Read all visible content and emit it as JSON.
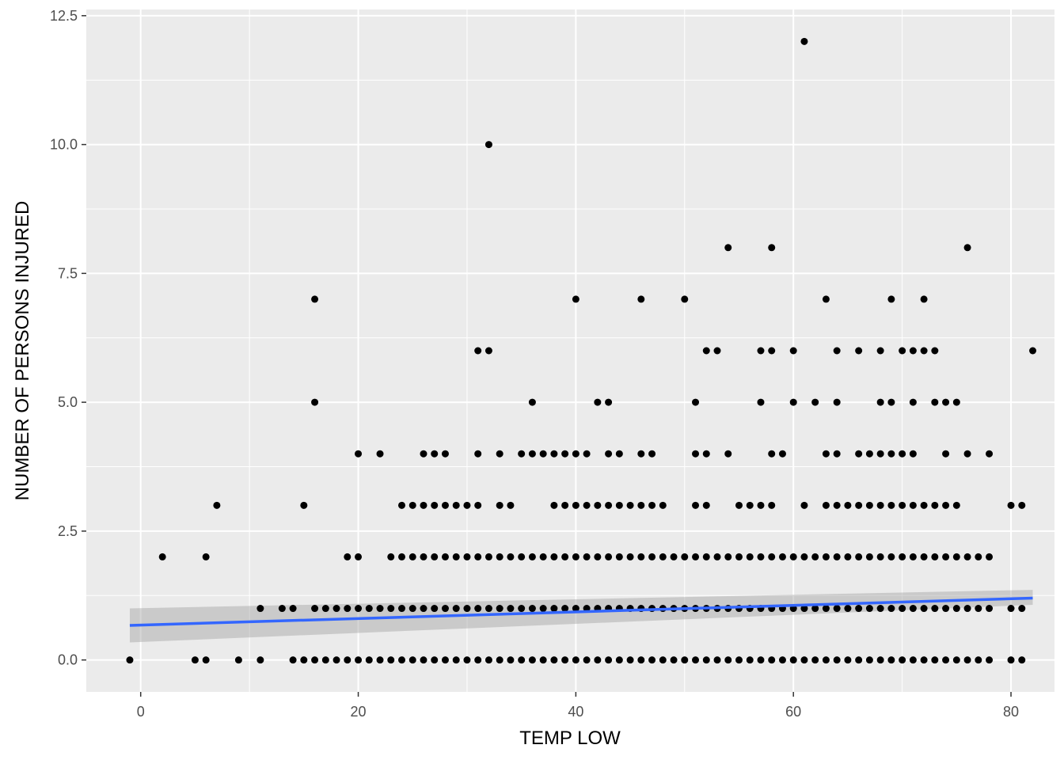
{
  "chart_data": {
    "type": "scatter",
    "title": "",
    "xlabel": "TEMP LOW",
    "ylabel": "NUMBER OF PERSONS INJURED",
    "xlim": [
      -5,
      84
    ],
    "ylim": [
      -0.62,
      12.62
    ],
    "x_ticks": [
      0,
      20,
      40,
      60,
      80
    ],
    "x_tick_labels": [
      "0",
      "20",
      "40",
      "60",
      "80"
    ],
    "y_ticks": [
      0,
      2.5,
      5,
      7.5,
      10,
      12.5
    ],
    "y_tick_labels": [
      "0.0",
      "2.5",
      "5.0",
      "7.5",
      "10.0",
      "12.5"
    ],
    "grid": true,
    "legend": "none",
    "colors": {
      "panel_background": "#ebebeb",
      "grid": "#ffffff",
      "points": "#000000",
      "fit_line": "#3366ff",
      "confidence_band": "#999999"
    },
    "series": [
      {
        "type": "scatter",
        "points": [
          [
            -1,
            0
          ],
          [
            5,
            0
          ],
          [
            6,
            0
          ],
          [
            9,
            0
          ],
          [
            11,
            0
          ],
          [
            14,
            0
          ],
          [
            15,
            0
          ],
          [
            16,
            0
          ],
          [
            17,
            0
          ],
          [
            18,
            0
          ],
          [
            19,
            0
          ],
          [
            20,
            0
          ],
          [
            21,
            0
          ],
          [
            22,
            0
          ],
          [
            23,
            0
          ],
          [
            24,
            0
          ],
          [
            25,
            0
          ],
          [
            26,
            0
          ],
          [
            27,
            0
          ],
          [
            28,
            0
          ],
          [
            29,
            0
          ],
          [
            30,
            0
          ],
          [
            31,
            0
          ],
          [
            32,
            0
          ],
          [
            33,
            0
          ],
          [
            34,
            0
          ],
          [
            35,
            0
          ],
          [
            36,
            0
          ],
          [
            37,
            0
          ],
          [
            38,
            0
          ],
          [
            39,
            0
          ],
          [
            40,
            0
          ],
          [
            41,
            0
          ],
          [
            42,
            0
          ],
          [
            43,
            0
          ],
          [
            44,
            0
          ],
          [
            45,
            0
          ],
          [
            46,
            0
          ],
          [
            47,
            0
          ],
          [
            48,
            0
          ],
          [
            49,
            0
          ],
          [
            50,
            0
          ],
          [
            51,
            0
          ],
          [
            52,
            0
          ],
          [
            53,
            0
          ],
          [
            54,
            0
          ],
          [
            55,
            0
          ],
          [
            56,
            0
          ],
          [
            57,
            0
          ],
          [
            58,
            0
          ],
          [
            59,
            0
          ],
          [
            60,
            0
          ],
          [
            61,
            0
          ],
          [
            62,
            0
          ],
          [
            63,
            0
          ],
          [
            64,
            0
          ],
          [
            65,
            0
          ],
          [
            66,
            0
          ],
          [
            67,
            0
          ],
          [
            68,
            0
          ],
          [
            69,
            0
          ],
          [
            70,
            0
          ],
          [
            71,
            0
          ],
          [
            72,
            0
          ],
          [
            73,
            0
          ],
          [
            74,
            0
          ],
          [
            75,
            0
          ],
          [
            76,
            0
          ],
          [
            77,
            0
          ],
          [
            78,
            0
          ],
          [
            80,
            0
          ],
          [
            81,
            0
          ],
          [
            11,
            1
          ],
          [
            13,
            1
          ],
          [
            14,
            1
          ],
          [
            16,
            1
          ],
          [
            17,
            1
          ],
          [
            18,
            1
          ],
          [
            19,
            1
          ],
          [
            20,
            1
          ],
          [
            21,
            1
          ],
          [
            22,
            1
          ],
          [
            23,
            1
          ],
          [
            24,
            1
          ],
          [
            25,
            1
          ],
          [
            26,
            1
          ],
          [
            27,
            1
          ],
          [
            28,
            1
          ],
          [
            29,
            1
          ],
          [
            30,
            1
          ],
          [
            31,
            1
          ],
          [
            32,
            1
          ],
          [
            33,
            1
          ],
          [
            34,
            1
          ],
          [
            35,
            1
          ],
          [
            36,
            1
          ],
          [
            37,
            1
          ],
          [
            38,
            1
          ],
          [
            39,
            1
          ],
          [
            40,
            1
          ],
          [
            41,
            1
          ],
          [
            42,
            1
          ],
          [
            43,
            1
          ],
          [
            44,
            1
          ],
          [
            45,
            1
          ],
          [
            46,
            1
          ],
          [
            47,
            1
          ],
          [
            48,
            1
          ],
          [
            49,
            1
          ],
          [
            50,
            1
          ],
          [
            51,
            1
          ],
          [
            52,
            1
          ],
          [
            53,
            1
          ],
          [
            54,
            1
          ],
          [
            55,
            1
          ],
          [
            56,
            1
          ],
          [
            57,
            1
          ],
          [
            58,
            1
          ],
          [
            59,
            1
          ],
          [
            60,
            1
          ],
          [
            61,
            1
          ],
          [
            62,
            1
          ],
          [
            63,
            1
          ],
          [
            64,
            1
          ],
          [
            65,
            1
          ],
          [
            66,
            1
          ],
          [
            67,
            1
          ],
          [
            68,
            1
          ],
          [
            69,
            1
          ],
          [
            70,
            1
          ],
          [
            71,
            1
          ],
          [
            72,
            1
          ],
          [
            73,
            1
          ],
          [
            74,
            1
          ],
          [
            75,
            1
          ],
          [
            76,
            1
          ],
          [
            77,
            1
          ],
          [
            78,
            1
          ],
          [
            80,
            1
          ],
          [
            81,
            1
          ],
          [
            2,
            2
          ],
          [
            6,
            2
          ],
          [
            19,
            2
          ],
          [
            20,
            2
          ],
          [
            23,
            2
          ],
          [
            24,
            2
          ],
          [
            25,
            2
          ],
          [
            26,
            2
          ],
          [
            27,
            2
          ],
          [
            28,
            2
          ],
          [
            29,
            2
          ],
          [
            30,
            2
          ],
          [
            31,
            2
          ],
          [
            32,
            2
          ],
          [
            33,
            2
          ],
          [
            34,
            2
          ],
          [
            35,
            2
          ],
          [
            36,
            2
          ],
          [
            37,
            2
          ],
          [
            38,
            2
          ],
          [
            39,
            2
          ],
          [
            40,
            2
          ],
          [
            41,
            2
          ],
          [
            42,
            2
          ],
          [
            43,
            2
          ],
          [
            44,
            2
          ],
          [
            45,
            2
          ],
          [
            46,
            2
          ],
          [
            47,
            2
          ],
          [
            48,
            2
          ],
          [
            49,
            2
          ],
          [
            50,
            2
          ],
          [
            51,
            2
          ],
          [
            52,
            2
          ],
          [
            53,
            2
          ],
          [
            54,
            2
          ],
          [
            55,
            2
          ],
          [
            56,
            2
          ],
          [
            57,
            2
          ],
          [
            58,
            2
          ],
          [
            59,
            2
          ],
          [
            60,
            2
          ],
          [
            61,
            2
          ],
          [
            62,
            2
          ],
          [
            63,
            2
          ],
          [
            64,
            2
          ],
          [
            65,
            2
          ],
          [
            66,
            2
          ],
          [
            67,
            2
          ],
          [
            68,
            2
          ],
          [
            69,
            2
          ],
          [
            70,
            2
          ],
          [
            71,
            2
          ],
          [
            72,
            2
          ],
          [
            73,
            2
          ],
          [
            74,
            2
          ],
          [
            75,
            2
          ],
          [
            76,
            2
          ],
          [
            77,
            2
          ],
          [
            78,
            2
          ],
          [
            7,
            3
          ],
          [
            15,
            3
          ],
          [
            24,
            3
          ],
          [
            25,
            3
          ],
          [
            26,
            3
          ],
          [
            27,
            3
          ],
          [
            28,
            3
          ],
          [
            29,
            3
          ],
          [
            30,
            3
          ],
          [
            31,
            3
          ],
          [
            33,
            3
          ],
          [
            34,
            3
          ],
          [
            38,
            3
          ],
          [
            39,
            3
          ],
          [
            40,
            3
          ],
          [
            41,
            3
          ],
          [
            42,
            3
          ],
          [
            43,
            3
          ],
          [
            44,
            3
          ],
          [
            45,
            3
          ],
          [
            46,
            3
          ],
          [
            47,
            3
          ],
          [
            48,
            3
          ],
          [
            51,
            3
          ],
          [
            52,
            3
          ],
          [
            55,
            3
          ],
          [
            56,
            3
          ],
          [
            57,
            3
          ],
          [
            58,
            3
          ],
          [
            61,
            3
          ],
          [
            63,
            3
          ],
          [
            64,
            3
          ],
          [
            65,
            3
          ],
          [
            66,
            3
          ],
          [
            67,
            3
          ],
          [
            68,
            3
          ],
          [
            69,
            3
          ],
          [
            70,
            3
          ],
          [
            71,
            3
          ],
          [
            72,
            3
          ],
          [
            73,
            3
          ],
          [
            74,
            3
          ],
          [
            75,
            3
          ],
          [
            80,
            3
          ],
          [
            81,
            3
          ],
          [
            20,
            4
          ],
          [
            22,
            4
          ],
          [
            26,
            4
          ],
          [
            27,
            4
          ],
          [
            28,
            4
          ],
          [
            31,
            4
          ],
          [
            33,
            4
          ],
          [
            35,
            4
          ],
          [
            36,
            4
          ],
          [
            37,
            4
          ],
          [
            38,
            4
          ],
          [
            39,
            4
          ],
          [
            40,
            4
          ],
          [
            41,
            4
          ],
          [
            43,
            4
          ],
          [
            44,
            4
          ],
          [
            46,
            4
          ],
          [
            47,
            4
          ],
          [
            51,
            4
          ],
          [
            52,
            4
          ],
          [
            54,
            4
          ],
          [
            58,
            4
          ],
          [
            59,
            4
          ],
          [
            63,
            4
          ],
          [
            64,
            4
          ],
          [
            66,
            4
          ],
          [
            67,
            4
          ],
          [
            68,
            4
          ],
          [
            69,
            4
          ],
          [
            70,
            4
          ],
          [
            71,
            4
          ],
          [
            74,
            4
          ],
          [
            76,
            4
          ],
          [
            78,
            4
          ],
          [
            16,
            5
          ],
          [
            36,
            5
          ],
          [
            42,
            5
          ],
          [
            43,
            5
          ],
          [
            51,
            5
          ],
          [
            57,
            5
          ],
          [
            60,
            5
          ],
          [
            62,
            5
          ],
          [
            64,
            5
          ],
          [
            68,
            5
          ],
          [
            69,
            5
          ],
          [
            71,
            5
          ],
          [
            73,
            5
          ],
          [
            74,
            5
          ],
          [
            75,
            5
          ],
          [
            31,
            6
          ],
          [
            32,
            6
          ],
          [
            52,
            6
          ],
          [
            53,
            6
          ],
          [
            57,
            6
          ],
          [
            58,
            6
          ],
          [
            60,
            6
          ],
          [
            64,
            6
          ],
          [
            66,
            6
          ],
          [
            68,
            6
          ],
          [
            70,
            6
          ],
          [
            71,
            6
          ],
          [
            72,
            6
          ],
          [
            73,
            6
          ],
          [
            82,
            6
          ],
          [
            16,
            7
          ],
          [
            40,
            7
          ],
          [
            46,
            7
          ],
          [
            50,
            7
          ],
          [
            63,
            7
          ],
          [
            69,
            7
          ],
          [
            72,
            7
          ],
          [
            54,
            8
          ],
          [
            58,
            8
          ],
          [
            76,
            8
          ],
          [
            32,
            10
          ],
          [
            61,
            12
          ]
        ]
      }
    ],
    "fit_line": {
      "method": "linear",
      "x": [
        -1,
        82
      ],
      "y": [
        0.67,
        1.2
      ],
      "ci_low": [
        0.34,
        1.07
      ],
      "ci_high": [
        1.0,
        1.36
      ]
    }
  }
}
